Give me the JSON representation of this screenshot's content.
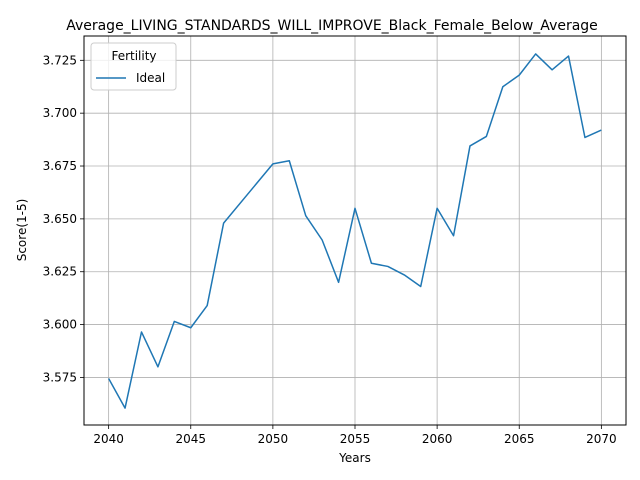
{
  "chart_data": {
    "type": "line",
    "title": "Average_LIVING_STANDARDS_WILL_IMPROVE_Black_Female_Below_Average",
    "xlabel": "Years",
    "ylabel": "Score(1-5)",
    "xlim": [
      2038.5,
      2071.5
    ],
    "ylim": [
      3.5525,
      3.7365
    ],
    "xticks": [
      2040,
      2045,
      2050,
      2055,
      2060,
      2065,
      2070
    ],
    "yticks": [
      3.575,
      3.6,
      3.625,
      3.65,
      3.675,
      3.7,
      3.725
    ],
    "grid": true,
    "legend": {
      "title": "Fertility",
      "placement": "upper-left"
    },
    "series": [
      {
        "name": "Ideal",
        "color": "#1f77b4",
        "x": [
          2040,
          2041,
          2042,
          2043,
          2044,
          2045,
          2046,
          2047,
          2050,
          2051,
          2052,
          2053,
          2054,
          2055,
          2056,
          2057,
          2058,
          2059,
          2060,
          2061,
          2062,
          2063,
          2064,
          2065,
          2066,
          2067,
          2068,
          2069,
          2070
        ],
        "y": [
          3.5745,
          3.5605,
          3.5965,
          3.58,
          3.6015,
          3.5985,
          3.609,
          3.648,
          3.676,
          3.6775,
          3.6515,
          3.64,
          3.62,
          3.655,
          3.629,
          3.6275,
          3.6235,
          3.618,
          3.655,
          3.642,
          3.6845,
          3.689,
          3.7125,
          3.718,
          3.728,
          3.7205,
          3.727,
          3.6885,
          3.692
        ]
      }
    ]
  }
}
